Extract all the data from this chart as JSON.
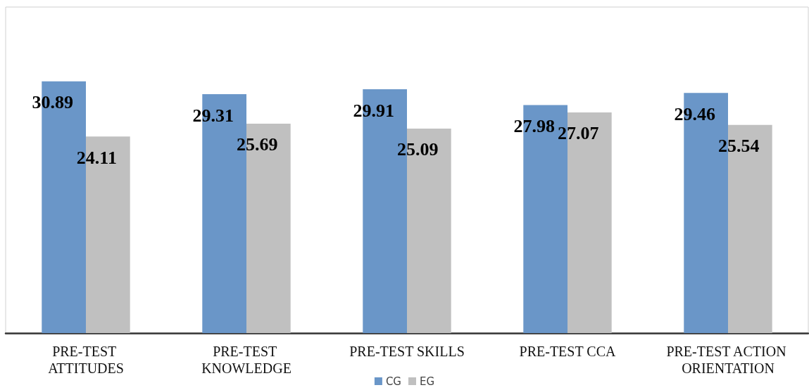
{
  "chart_data": {
    "type": "bar",
    "categories": [
      "PRE-TEST ATTITUDES",
      "PRE-TEST KNOWLEDGE",
      "PRE-TEST SKILLS",
      "PRE-TEST CCA",
      "PRE-TEST ACTION ORIENTATION"
    ],
    "series": [
      {
        "name": "CG",
        "color": "#6a96c8",
        "values": [
          30.89,
          29.31,
          29.91,
          27.98,
          29.46
        ]
      },
      {
        "name": "EG",
        "color": "#c0c0c0",
        "values": [
          24.11,
          25.69,
          25.09,
          27.07,
          25.54
        ]
      }
    ],
    "ylim": [
      0,
      40
    ],
    "data_labels": true,
    "legend": "bottom",
    "grid": false,
    "tick_labels": "x"
  }
}
